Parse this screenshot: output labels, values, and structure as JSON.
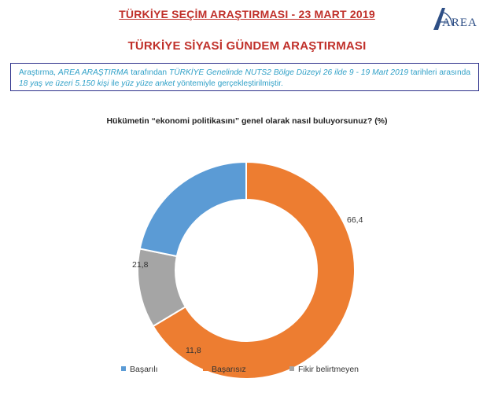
{
  "header": {
    "title": "TÜRKİYE SEÇİM ARAŞTIRMASI - 23 MART 2019",
    "subtitle": "TÜRKİYE SİYASİ GÜNDEM ARAŞTIRMASI",
    "logo_text": "AREA"
  },
  "info": {
    "p1": "Araştırma, ",
    "p2": "AREA ARAŞTIRMA",
    "p3": " tarafından ",
    "p4": "TÜRKİYE",
    "p5": " Genelinde NUTS2 Bölge Düzeyi 26 ilde 9 - 19 Mart 2019",
    "p6": " tarihleri arasında ",
    "p7": "18 yaş ve üzeri 5.150 kişi",
    "p8": " ile ",
    "p9": "yüz yüze anket",
    "p10": " yöntemiyle gerçekleştirilmiştir."
  },
  "colors": {
    "accent": "#c0302a",
    "border": "#2c2f8a",
    "info_text": "#2fa0c7"
  },
  "chart_data": {
    "type": "pie",
    "style": "donut",
    "title": "Hükümetin “ekonomi politikasını” genel olarak nasıl buluyorsunuz? (%)",
    "categories": [
      "Başarılı",
      "Başarısız",
      "Fikir belirtmeyen"
    ],
    "values": [
      21.8,
      66.4,
      11.8
    ],
    "value_labels": [
      "21,8",
      "66,4",
      "11,8"
    ],
    "colors": [
      "#5b9bd5",
      "#ed7d31",
      "#a5a5a5"
    ],
    "legend_position": "bottom"
  }
}
